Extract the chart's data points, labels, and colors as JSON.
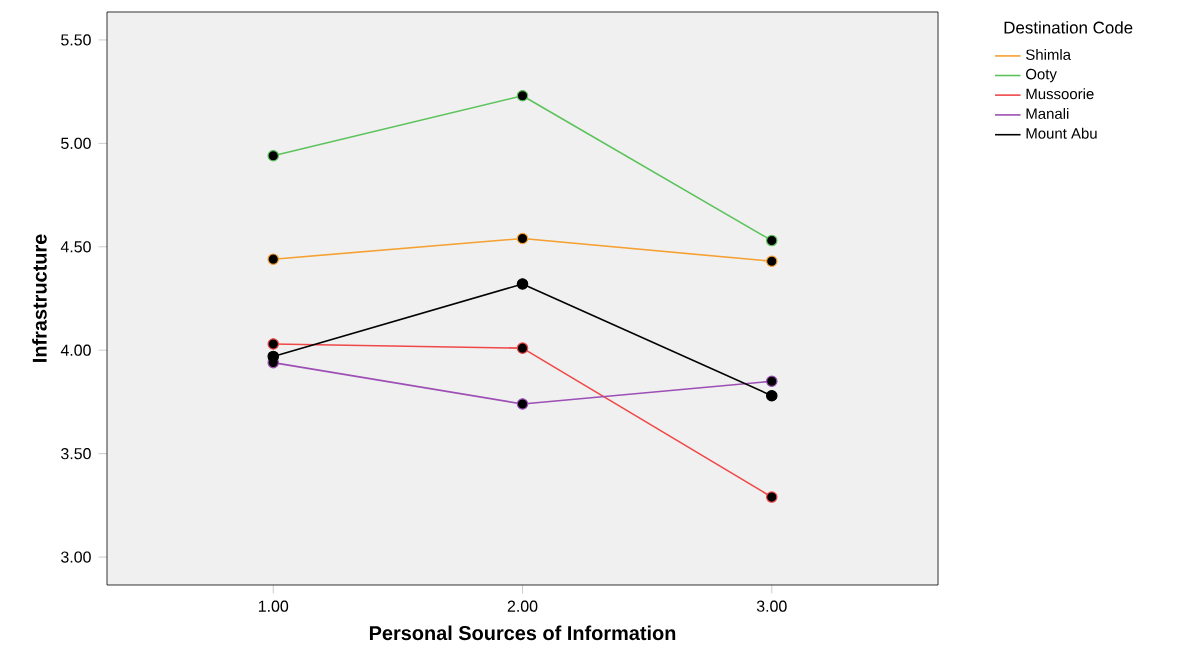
{
  "chart_data": {
    "type": "line",
    "xlabel": "Personal Sources of Information",
    "ylabel": "Infrastructure",
    "legend_title": "Destination Code",
    "x": [
      1,
      2,
      3
    ],
    "xlim": [
      0.333,
      3.667
    ],
    "ylim": [
      2.865,
      5.635
    ],
    "xticks": [
      {
        "value": 1,
        "label": "1.00"
      },
      {
        "value": 2,
        "label": "2.00"
      },
      {
        "value": 3,
        "label": "3.00"
      }
    ],
    "yticks": [
      {
        "value": 3,
        "label": "3.00"
      },
      {
        "value": 3.5,
        "label": "3.50"
      },
      {
        "value": 4,
        "label": "4.00"
      },
      {
        "value": 4.5,
        "label": "4.50"
      },
      {
        "value": 5,
        "label": "5.00"
      },
      {
        "value": 5.5,
        "label": "5.50"
      }
    ],
    "marker": "circle",
    "legend": "top right",
    "grid": false,
    "series": [
      {
        "name": "Shimla",
        "color": "#f5a030",
        "values": [
          4.44,
          4.54,
          4.43
        ]
      },
      {
        "name": "Ooty",
        "color": "#5cc35c",
        "values": [
          4.94,
          5.23,
          4.53
        ]
      },
      {
        "name": "Mussoorie",
        "color": "#f04848",
        "values": [
          4.03,
          4.01,
          3.29
        ]
      },
      {
        "name": "Manali",
        "color": "#9c4fb5",
        "values": [
          3.94,
          3.74,
          3.85
        ]
      },
      {
        "name": "Mount Abu",
        "color": "#000000",
        "values": [
          3.97,
          4.32,
          3.78
        ]
      }
    ]
  }
}
